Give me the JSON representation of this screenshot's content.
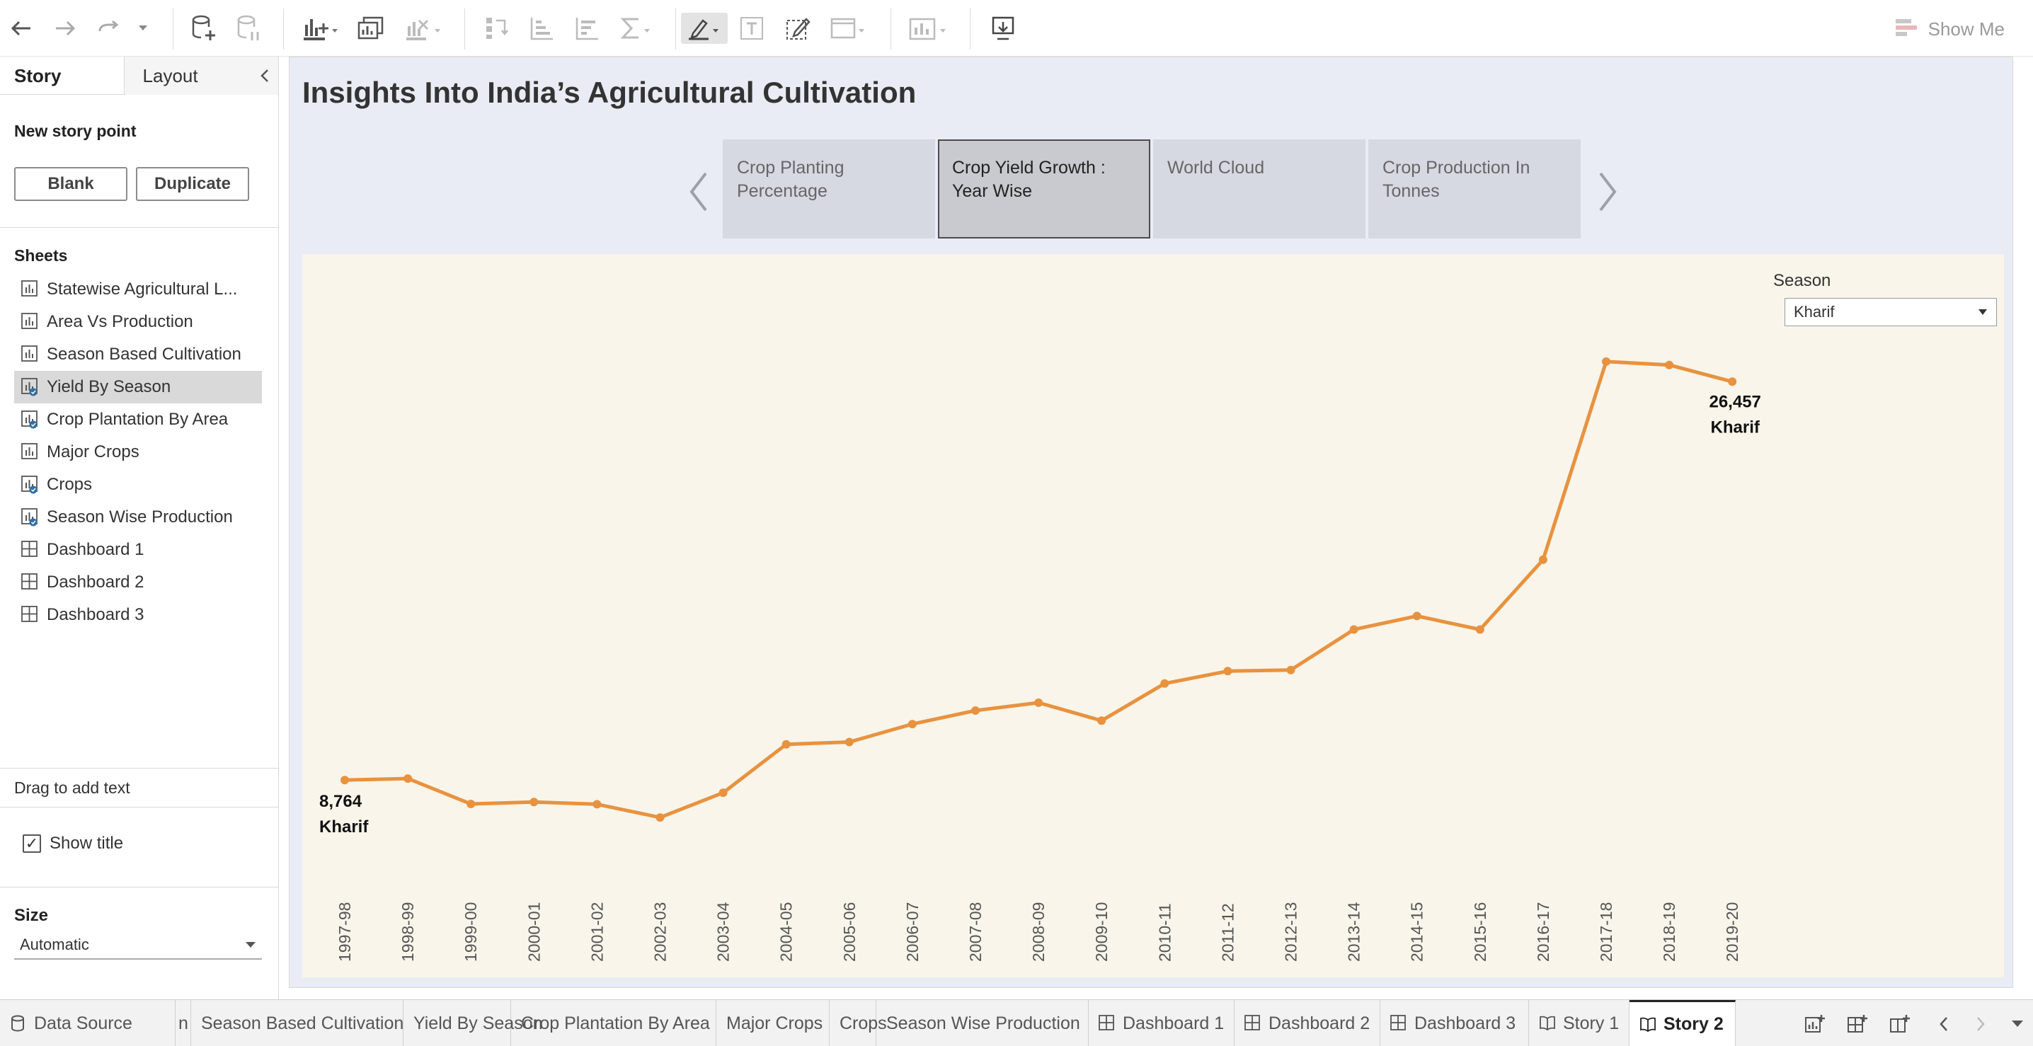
{
  "toolbar": {
    "show_me": "Show Me"
  },
  "left_pane": {
    "tabs": [
      "Story",
      "Layout"
    ],
    "new_story_point": "New story point",
    "blank_button": "Blank",
    "duplicate_button": "Duplicate",
    "sheets_heading": "Sheets",
    "sheets": [
      {
        "label": "Statewise Agricultural L...",
        "type": "sheet",
        "used": false
      },
      {
        "label": "Area Vs Production",
        "type": "sheet",
        "used": false
      },
      {
        "label": "Season Based Cultivation",
        "type": "sheet",
        "used": false
      },
      {
        "label": "Yield By Season",
        "type": "sheet",
        "used": true,
        "selected": true
      },
      {
        "label": "Crop Plantation By Area",
        "type": "sheet",
        "used": true
      },
      {
        "label": "Major Crops",
        "type": "sheet",
        "used": false
      },
      {
        "label": "Crops",
        "type": "sheet",
        "used": true
      },
      {
        "label": "Season Wise Production",
        "type": "sheet",
        "used": true
      },
      {
        "label": "Dashboard 1",
        "type": "dashboard",
        "used": false
      },
      {
        "label": "Dashboard 2",
        "type": "dashboard",
        "used": false
      },
      {
        "label": "Dashboard 3",
        "type": "dashboard",
        "used": false
      }
    ],
    "drag_text": "Drag to add text",
    "show_title": "Show title",
    "size_heading": "Size",
    "size_value": "Automatic"
  },
  "story": {
    "title": "Insights Into India’s Agricultural Cultivation",
    "points": [
      {
        "label": "Crop Planting Percentage",
        "active": false
      },
      {
        "label": "Crop Yield Growth : Year Wise",
        "active": true
      },
      {
        "label": "World Cloud",
        "active": false
      },
      {
        "label": "Crop Production In Tonnes",
        "active": false
      }
    ]
  },
  "filter": {
    "label": "Season",
    "value": "Kharif"
  },
  "chart_data": {
    "type": "line",
    "line_color": "#e8923f",
    "x": [
      "1997-98",
      "1998-99",
      "1999-00",
      "2000-01",
      "2001-02",
      "2002-03",
      "2003-04",
      "2004-05",
      "2005-06",
      "2006-07",
      "2007-08",
      "2008-09",
      "2009-10",
      "2010-11",
      "2011-12",
      "2012-13",
      "2013-14",
      "2014-15",
      "2015-16",
      "2016-17",
      "2017-18",
      "2018-19",
      "2019-20"
    ],
    "series": [
      {
        "name": "Kharif",
        "values": [
          8764,
          8830,
          7700,
          7790,
          7690,
          7100,
          8200,
          10350,
          10450,
          11250,
          11850,
          12200,
          11400,
          13050,
          13600,
          13650,
          15450,
          16050,
          15450,
          18550,
          27350,
          27200,
          26457
        ]
      }
    ],
    "data_labels": [
      {
        "index": 0,
        "value": "8,764",
        "series": "Kharif"
      },
      {
        "index": 22,
        "value": "26,457",
        "series": "Kharif"
      }
    ],
    "ylim": [
      0,
      31000
    ],
    "grid": false
  },
  "bottom_tabs": [
    {
      "label": "Data Source",
      "kind": "datasource",
      "active": false
    },
    {
      "label": "n",
      "kind": "sheet",
      "active": false
    },
    {
      "label": "Season Based Cultivation",
      "kind": "sheet",
      "active": false
    },
    {
      "label": "Yield By Season",
      "kind": "sheet",
      "active": false
    },
    {
      "label": "Crop Plantation By Area",
      "kind": "sheet",
      "active": false
    },
    {
      "label": "Major Crops",
      "kind": "sheet",
      "active": false
    },
    {
      "label": "Crops",
      "kind": "sheet",
      "active": false
    },
    {
      "label": "Season Wise Production",
      "kind": "sheet",
      "active": false
    },
    {
      "label": "Dashboard 1",
      "kind": "dashboard",
      "active": false
    },
    {
      "label": "Dashboard 2",
      "kind": "dashboard",
      "active": false
    },
    {
      "label": "Dashboard 3",
      "kind": "dashboard",
      "active": false
    },
    {
      "label": "Story 1",
      "kind": "story",
      "active": false
    },
    {
      "label": "Story 2",
      "kind": "story",
      "active": true
    }
  ]
}
